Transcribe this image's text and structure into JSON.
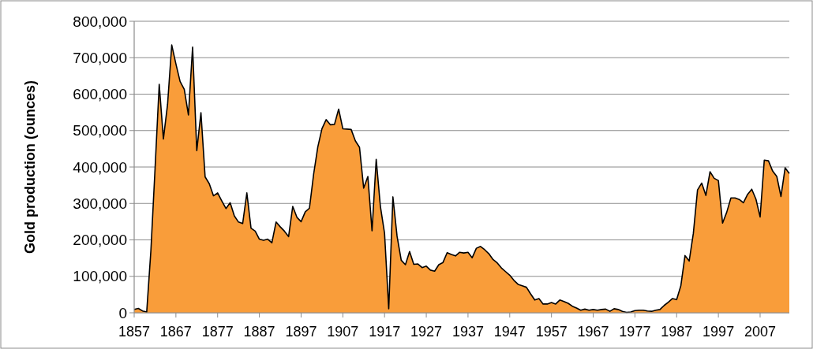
{
  "chart_data": {
    "type": "area",
    "ylabel": "Gold production (ounces)",
    "color": "#f99d3a",
    "categories": [
      "1857",
      null,
      null,
      null,
      null,
      null,
      null,
      null,
      null,
      null,
      "1867",
      null,
      null,
      null,
      null,
      null,
      null,
      null,
      null,
      null,
      "1877",
      null,
      null,
      null,
      null,
      null,
      null,
      null,
      null,
      null,
      "1887",
      null,
      null,
      null,
      null,
      null,
      null,
      null,
      null,
      null,
      "1897",
      null,
      null,
      null,
      null,
      null,
      null,
      null,
      null,
      null,
      "1907",
      null,
      null,
      null,
      null,
      null,
      null,
      null,
      null,
      null,
      "1917",
      null,
      null,
      null,
      null,
      null,
      null,
      null,
      null,
      null,
      "1927",
      null,
      null,
      null,
      null,
      null,
      null,
      null,
      null,
      null,
      "1937",
      null,
      null,
      null,
      null,
      null,
      null,
      null,
      null,
      null,
      "1947",
      null,
      null,
      null,
      null,
      null,
      null,
      null,
      null,
      null,
      "1957",
      null,
      null,
      null,
      null,
      null,
      null,
      null,
      null,
      null,
      "1967",
      null,
      null,
      null,
      null,
      null,
      null,
      null,
      null,
      null,
      "1977",
      null,
      null,
      null,
      null,
      null,
      null,
      null,
      null,
      null,
      "1987",
      null,
      null,
      null,
      null,
      null,
      null,
      null,
      null,
      null,
      "1997",
      null,
      null,
      null,
      null,
      null,
      null,
      null,
      null,
      null,
      "2007",
      null,
      null,
      null,
      null,
      null,
      null,
      null
    ],
    "values": [
      9000,
      12000,
      5000,
      2000,
      170000,
      395000,
      627000,
      477000,
      572000,
      735000,
      683000,
      635000,
      613000,
      543000,
      729000,
      445000,
      549000,
      373000,
      354000,
      321000,
      329000,
      307000,
      286000,
      302000,
      266000,
      249000,
      245000,
      329000,
      232000,
      224000,
      202000,
      199000,
      202000,
      192000,
      249000,
      236000,
      224000,
      209000,
      292000,
      262000,
      250000,
      277000,
      287000,
      380000,
      455000,
      505000,
      530000,
      516000,
      517000,
      559000,
      505000,
      504000,
      503000,
      472000,
      454000,
      342000,
      374000,
      225000,
      421000,
      292000,
      218000,
      11000,
      318000,
      210000,
      144000,
      132000,
      168000,
      133000,
      134000,
      124000,
      128000,
      117000,
      114000,
      132000,
      138000,
      165000,
      160000,
      156000,
      166000,
      164000,
      166000,
      151000,
      177000,
      182000,
      173000,
      162000,
      146000,
      137000,
      123000,
      113000,
      103000,
      89000,
      78000,
      74000,
      70000,
      52000,
      35000,
      39000,
      24000,
      24000,
      28000,
      24000,
      35000,
      31000,
      26000,
      18000,
      13000,
      7000,
      10000,
      7000,
      9000,
      7000,
      9000,
      10000,
      4000,
      11000,
      9000,
      4000,
      1000,
      2000,
      6000,
      7000,
      7000,
      5000,
      4000,
      7000,
      9000,
      20000,
      29000,
      39000,
      36000,
      74000,
      157000,
      142000,
      218000,
      337000,
      356000,
      322000,
      387000,
      369000,
      363000,
      246000,
      276000,
      315000,
      315000,
      311000,
      302000,
      325000,
      339000,
      312000,
      263000,
      419000,
      417000,
      389000,
      374000,
      319000,
      398000,
      382000
    ],
    "ylim": [
      0,
      800000
    ],
    "yticks": [
      {
        "value": 0,
        "label": "0"
      },
      {
        "value": 100000,
        "label": "100,000"
      },
      {
        "value": 200000,
        "label": "200,000"
      },
      {
        "value": 300000,
        "label": "300,000"
      },
      {
        "value": 400000,
        "label": "400,000"
      },
      {
        "value": 500000,
        "label": "500,000"
      },
      {
        "value": 600000,
        "label": "600,000"
      },
      {
        "value": 700000,
        "label": "700,000"
      },
      {
        "value": 800000,
        "label": "800,000"
      }
    ],
    "grid": "y"
  }
}
